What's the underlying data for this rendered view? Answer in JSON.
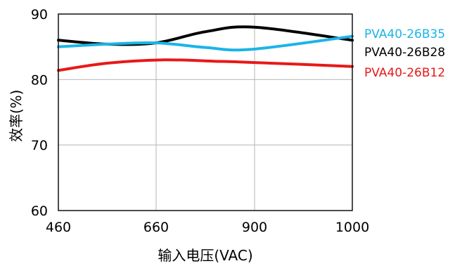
{
  "chart_data": {
    "type": "line",
    "title": "",
    "xlabel": "输入电压(VAC)",
    "ylabel": "效率(%)",
    "x_ticks": [
      "460",
      "660",
      "900",
      "1000"
    ],
    "y_ticks": [
      "60",
      "70",
      "80",
      "90"
    ],
    "ylim": [
      60,
      90
    ],
    "grid": true,
    "legend_placement": "right",
    "series": [
      {
        "name": "PVA40-26B28",
        "color": "#000000",
        "x": [
          460,
          560,
          660,
          780,
          900,
          1000
        ],
        "y": [
          86.0,
          85.4,
          85.6,
          87.3,
          88.0,
          86.0
        ]
      },
      {
        "name": "PVA40-26B35",
        "color": "#1ab4e6",
        "x": [
          460,
          560,
          660,
          780,
          890,
          1000
        ],
        "y": [
          85.0,
          85.4,
          85.6,
          84.9,
          84.6,
          86.6
        ]
      },
      {
        "name": "PVA40-26B12",
        "color": "#e81818",
        "x": [
          460,
          560,
          680,
          800,
          900,
          1000
        ],
        "y": [
          81.4,
          82.5,
          83.0,
          82.8,
          82.6,
          82.0
        ]
      }
    ],
    "legend_order": [
      "PVA40-26B35",
      "PVA40-26B28",
      "PVA40-26B12"
    ]
  }
}
